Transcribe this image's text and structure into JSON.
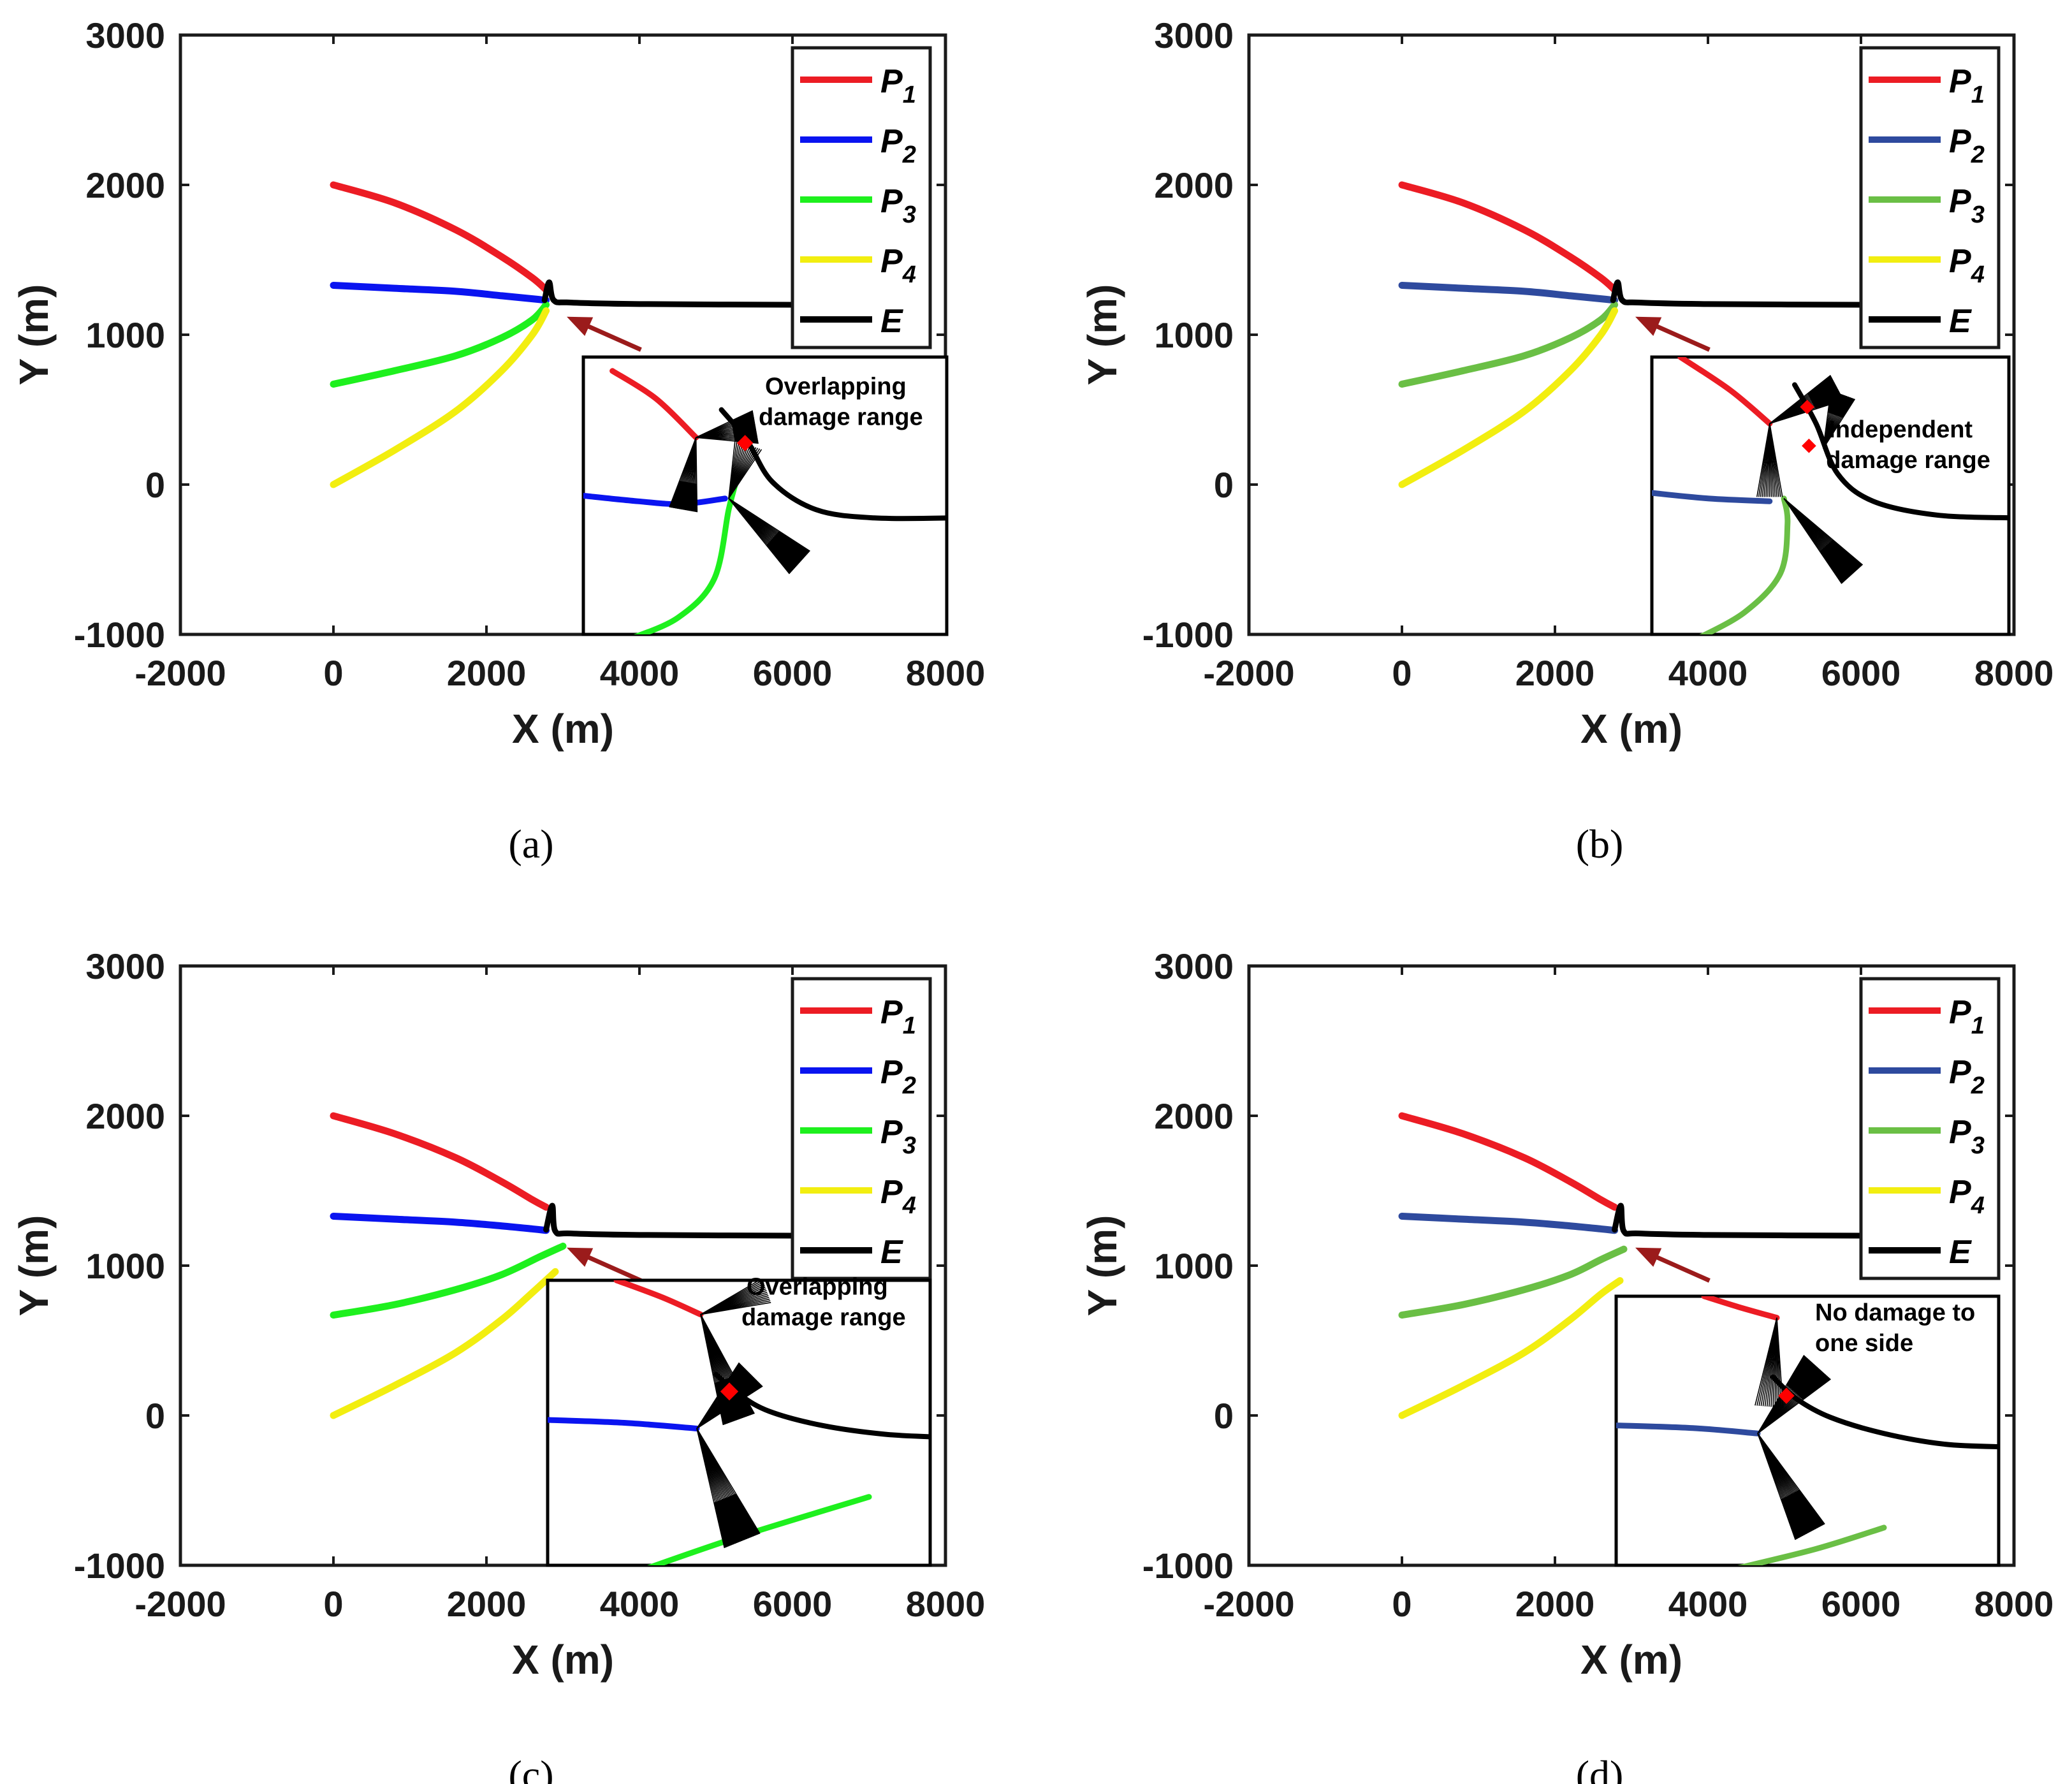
{
  "colors": {
    "P1": "#ec1c24",
    "P2_bright": "#0a14f0",
    "P2_muted": "#2e4a9e",
    "P3_bright": "#1ef01e",
    "P3_muted": "#6abf45",
    "P4": "#f2ee10",
    "E": "#000000",
    "arrow": "#9b1b1b"
  },
  "chart_data": [
    {
      "panel": "a",
      "caption": "(a)",
      "type": "line",
      "xlabel": "X (m)",
      "ylabel": "Y (m)",
      "xlim": [
        -2000,
        8000
      ],
      "ylim": [
        -1000,
        3000
      ],
      "xticks": [
        "-2000",
        "0",
        "2000",
        "4000",
        "6000",
        "8000"
      ],
      "yticks": [
        "-1000",
        "0",
        "1000",
        "2000",
        "3000"
      ],
      "palette": "bright",
      "legend": {
        "position": "top-right",
        "entries": [
          "P1",
          "P2",
          "P3",
          "P4",
          "E"
        ]
      },
      "series": [
        {
          "name": "P1",
          "x": [
            0,
            800,
            1600,
            2200,
            2600,
            2780
          ],
          "y": [
            2000,
            1880,
            1700,
            1520,
            1380,
            1300
          ]
        },
        {
          "name": "P2",
          "x": [
            0,
            800,
            1600,
            2200,
            2600,
            2780
          ],
          "y": [
            1330,
            1310,
            1290,
            1260,
            1240,
            1230
          ]
        },
        {
          "name": "P3",
          "x": [
            0,
            800,
            1600,
            2200,
            2600,
            2780
          ],
          "y": [
            670,
            760,
            860,
            980,
            1100,
            1200
          ]
        },
        {
          "name": "P4",
          "x": [
            0,
            800,
            1600,
            2200,
            2600,
            2780
          ],
          "y": [
            0,
            230,
            490,
            760,
            1000,
            1160
          ]
        },
        {
          "name": "E",
          "x": [
            2760,
            2820,
            2880,
            3100,
            4000,
            6000,
            7200
          ],
          "y": [
            1230,
            1350,
            1230,
            1215,
            1205,
            1200,
            1200
          ]
        }
      ],
      "annotation": [
        "Overlapping",
        "damage range"
      ],
      "inset": "overlap"
    },
    {
      "panel": "b",
      "caption": "(b)",
      "type": "line",
      "xlabel": "X (m)",
      "ylabel": "Y (m)",
      "xlim": [
        -2000,
        8000
      ],
      "ylim": [
        -1000,
        3000
      ],
      "xticks": [
        "-2000",
        "0",
        "2000",
        "4000",
        "6000",
        "8000"
      ],
      "yticks": [
        "-1000",
        "0",
        "1000",
        "2000",
        "3000"
      ],
      "palette": "muted",
      "legend": {
        "position": "top-right",
        "entries": [
          "P1",
          "P2",
          "P3",
          "P4",
          "E"
        ]
      },
      "series": [
        {
          "name": "P1",
          "x": [
            0,
            800,
            1600,
            2200,
            2600,
            2780
          ],
          "y": [
            2000,
            1880,
            1700,
            1520,
            1380,
            1300
          ]
        },
        {
          "name": "P2",
          "x": [
            0,
            800,
            1600,
            2200,
            2600,
            2780
          ],
          "y": [
            1330,
            1310,
            1290,
            1260,
            1240,
            1230
          ]
        },
        {
          "name": "P3",
          "x": [
            0,
            800,
            1600,
            2200,
            2600,
            2780
          ],
          "y": [
            670,
            760,
            860,
            980,
            1100,
            1200
          ]
        },
        {
          "name": "P4",
          "x": [
            0,
            800,
            1600,
            2200,
            2600,
            2780
          ],
          "y": [
            0,
            230,
            490,
            760,
            1000,
            1160
          ]
        },
        {
          "name": "E",
          "x": [
            2760,
            2820,
            2880,
            3100,
            4000,
            6000,
            7200
          ],
          "y": [
            1230,
            1350,
            1230,
            1215,
            1205,
            1200,
            1200
          ]
        }
      ],
      "annotation": [
        "Independent",
        "damage range"
      ],
      "inset": "independent"
    },
    {
      "panel": "c",
      "caption": "(c)",
      "type": "line",
      "xlabel": "X (m)",
      "ylabel": "Y (m)",
      "xlim": [
        -2000,
        8000
      ],
      "ylim": [
        -1000,
        3000
      ],
      "xticks": [
        "-2000",
        "0",
        "2000",
        "4000",
        "6000",
        "8000"
      ],
      "yticks": [
        "-1000",
        "0",
        "1000",
        "2000",
        "3000"
      ],
      "palette": "bright",
      "legend": {
        "position": "top-right",
        "entries": [
          "P1",
          "P2",
          "P3",
          "P4",
          "E"
        ]
      },
      "series": [
        {
          "name": "P1",
          "x": [
            0,
            800,
            1600,
            2200,
            2600,
            2780
          ],
          "y": [
            2000,
            1880,
            1720,
            1560,
            1440,
            1390
          ]
        },
        {
          "name": "P2",
          "x": [
            0,
            800,
            1600,
            2200,
            2600,
            2780
          ],
          "y": [
            1330,
            1310,
            1290,
            1265,
            1245,
            1235
          ]
        },
        {
          "name": "P3",
          "x": [
            0,
            800,
            1600,
            2200,
            2700,
            3000
          ],
          "y": [
            670,
            740,
            840,
            940,
            1060,
            1130
          ]
        },
        {
          "name": "P4",
          "x": [
            0,
            800,
            1600,
            2200,
            2600,
            2900
          ],
          "y": [
            0,
            200,
            420,
            640,
            820,
            960
          ]
        },
        {
          "name": "E",
          "x": [
            2780,
            2860,
            2900,
            3100,
            4000,
            6000,
            7200
          ],
          "y": [
            1240,
            1400,
            1230,
            1215,
            1205,
            1200,
            1200
          ]
        }
      ],
      "annotation": [
        "Overlapping",
        "damage range"
      ],
      "inset": "overlap2"
    },
    {
      "panel": "d",
      "caption": "(d)",
      "type": "line",
      "xlabel": "X (m)",
      "ylabel": "Y (m)",
      "xlim": [
        -2000,
        8000
      ],
      "ylim": [
        -1000,
        3000
      ],
      "xticks": [
        "-2000",
        "0",
        "2000",
        "4000",
        "6000",
        "8000"
      ],
      "yticks": [
        "-1000",
        "0",
        "1000",
        "2000",
        "3000"
      ],
      "palette": "muted",
      "legend": {
        "position": "top-right",
        "entries": [
          "P1",
          "P2",
          "P3",
          "P4",
          "E"
        ]
      },
      "series": [
        {
          "name": "P1",
          "x": [
            0,
            800,
            1600,
            2200,
            2600,
            2780
          ],
          "y": [
            2000,
            1880,
            1720,
            1560,
            1440,
            1390
          ]
        },
        {
          "name": "P2",
          "x": [
            0,
            800,
            1600,
            2200,
            2600,
            2780
          ],
          "y": [
            1330,
            1310,
            1290,
            1265,
            1245,
            1235
          ]
        },
        {
          "name": "P3",
          "x": [
            0,
            800,
            1600,
            2200,
            2600,
            2900
          ],
          "y": [
            670,
            740,
            840,
            940,
            1040,
            1110
          ]
        },
        {
          "name": "P4",
          "x": [
            0,
            800,
            1600,
            2200,
            2600,
            2850
          ],
          "y": [
            0,
            200,
            420,
            640,
            810,
            900
          ]
        },
        {
          "name": "E",
          "x": [
            2780,
            2860,
            2900,
            3100,
            4000,
            6000,
            7200
          ],
          "y": [
            1240,
            1400,
            1230,
            1215,
            1205,
            1200,
            1200
          ]
        }
      ],
      "annotation": [
        "No damage to",
        "one side"
      ],
      "inset": "oneside"
    }
  ]
}
